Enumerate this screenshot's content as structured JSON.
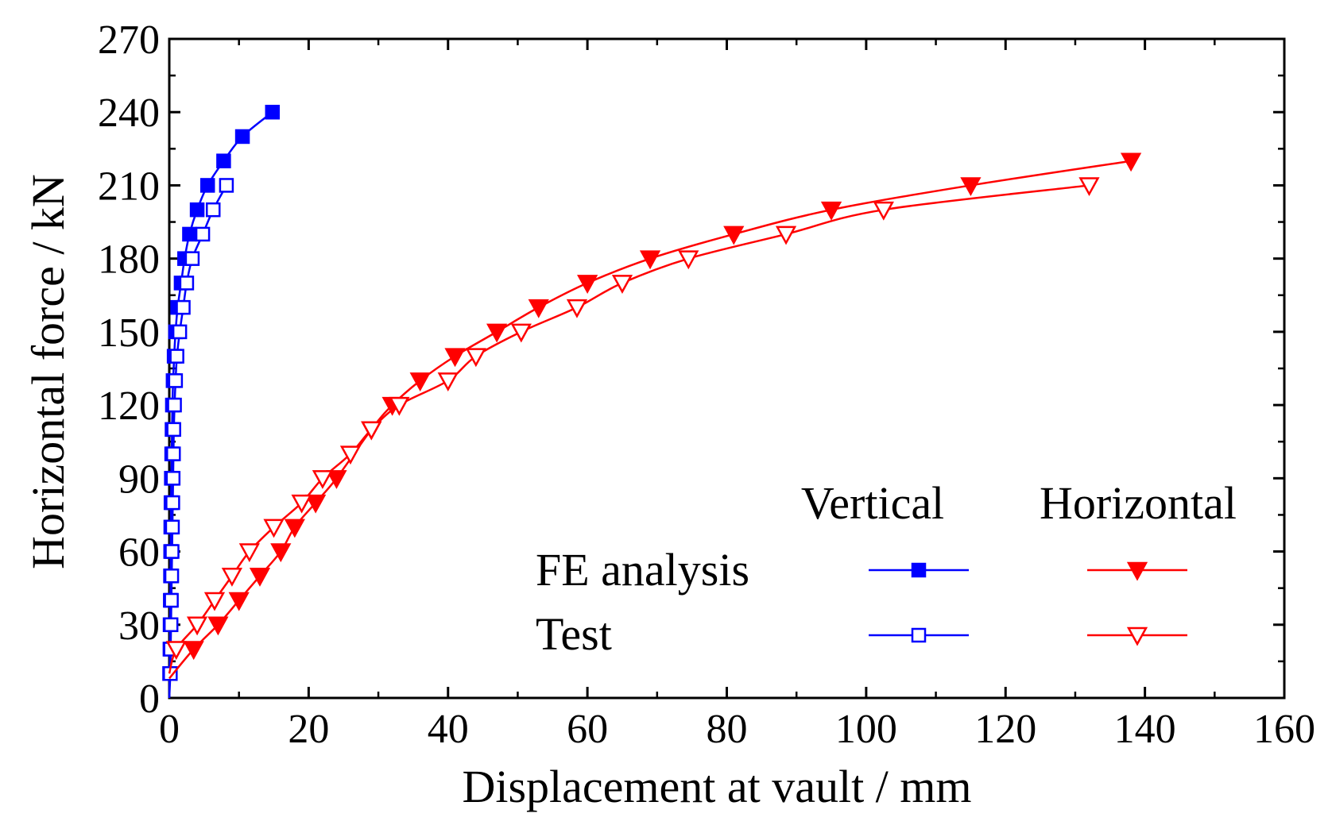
{
  "chart_data": {
    "type": "line",
    "title": "",
    "xlabel": "Displacement at vault / mm",
    "ylabel": "Horizontal force / kN",
    "xlim": [
      0,
      160
    ],
    "ylim": [
      0,
      270
    ],
    "xticks": [
      0,
      20,
      40,
      60,
      80,
      100,
      120,
      140,
      160
    ],
    "yticks": [
      0,
      30,
      60,
      90,
      120,
      150,
      180,
      210,
      240,
      270
    ],
    "legend": {
      "position": "bottom-right",
      "col_headers": [
        "Vertical",
        "Horizontal"
      ],
      "row_labels": [
        "FE analysis",
        "Test"
      ]
    },
    "series": [
      {
        "name": "FE analysis - Vertical",
        "color": "#0000ff",
        "marker": "square-filled",
        "x": [
          0.0,
          0.05,
          0.1,
          0.12,
          0.15,
          0.18,
          0.2,
          0.22,
          0.25,
          0.3,
          0.35,
          0.4,
          0.45,
          0.55,
          0.7,
          0.9,
          1.2,
          1.7,
          2.2,
          2.9,
          4.0,
          5.5,
          7.8,
          10.5,
          14.8
        ],
        "y": [
          0,
          10,
          20,
          30,
          40,
          50,
          60,
          70,
          80,
          90,
          100,
          110,
          120,
          130,
          140,
          150,
          160,
          170,
          180,
          190,
          200,
          210,
          220,
          230,
          240
        ]
      },
      {
        "name": "Test - Vertical",
        "color": "#0000ff",
        "marker": "square-open",
        "x": [
          0.0,
          0.15,
          0.2,
          0.25,
          0.3,
          0.35,
          0.4,
          0.45,
          0.5,
          0.55,
          0.6,
          0.65,
          0.75,
          0.9,
          1.1,
          1.5,
          2.0,
          2.5,
          3.3,
          4.8,
          6.3,
          8.2
        ],
        "y": [
          0,
          10,
          20,
          30,
          40,
          50,
          60,
          70,
          80,
          90,
          100,
          110,
          120,
          130,
          140,
          150,
          160,
          170,
          180,
          190,
          200,
          210
        ]
      },
      {
        "name": "FE analysis - Horizontal",
        "color": "#ff0000",
        "marker": "triangle-down-filled",
        "x": [
          0,
          3.5,
          7,
          10,
          13,
          16,
          18,
          21,
          24,
          29,
          32,
          36,
          41,
          47,
          53,
          60,
          69,
          81,
          95,
          115,
          138
        ],
        "y": [
          8,
          20,
          30,
          40,
          50,
          60,
          70,
          80,
          90,
          110,
          120,
          130,
          140,
          150,
          160,
          170,
          180,
          190,
          200,
          210,
          220
        ]
      },
      {
        "name": "Test - Horizontal",
        "color": "#ff0000",
        "marker": "triangle-down-open",
        "x": [
          0,
          1,
          4,
          6.5,
          9,
          11.5,
          15,
          19,
          22,
          26,
          29,
          33,
          40,
          44,
          50.5,
          58.5,
          65,
          74.5,
          88.5,
          102.5,
          132
        ],
        "y": [
          10,
          20,
          30,
          40,
          50,
          60,
          70,
          80,
          90,
          100,
          110,
          120,
          130,
          140,
          150,
          160,
          170,
          180,
          190,
          200,
          210
        ]
      }
    ]
  }
}
